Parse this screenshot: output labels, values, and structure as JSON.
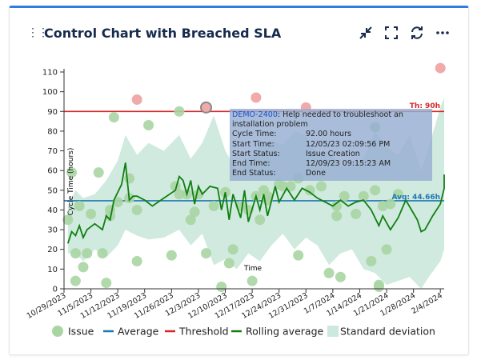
{
  "widget": {
    "title": "Control Chart with Breached SLA",
    "icons": [
      "collapse-icon",
      "fullscreen-icon",
      "refresh-icon",
      "more-icon"
    ]
  },
  "tooltip": {
    "issue": "DEMO-2400",
    "summary": ": Help needed to troubleshoot an installation problem",
    "rows": [
      {
        "label": "Cycle Time:",
        "value": "92.00 hours"
      },
      {
        "label": "Start Time:",
        "value": "12/05/23 02:09:56 PM"
      },
      {
        "label": "Start Status:",
        "value": "Issue Creation"
      },
      {
        "label": "End Time:",
        "value": "12/09/23 09:15:23 AM"
      },
      {
        "label": "End Status:",
        "value": "Done"
      }
    ]
  },
  "colors": {
    "issue_point": "#a9d5a3",
    "breached_point": "#f0aaaa",
    "average": "#1f77b4",
    "threshold": "#d62728",
    "rolling": "#108010",
    "band": "#cde9dd"
  },
  "chart_data": {
    "type": "scatter",
    "ylabel": "Cycle Time (hours)",
    "xlabel": "Time",
    "ylim": [
      0,
      110
    ],
    "xlim": [
      "2023-10-29",
      "2024-02-05"
    ],
    "x_ticks": [
      "10/29/2023",
      "11/5/2023",
      "11/12/2023",
      "11/19/2023",
      "11/26/2023",
      "12/3/2023",
      "12/10/2023",
      "12/17/2023",
      "12/24/2023",
      "12/31/2023",
      "1/7/2024",
      "1/14/2024",
      "1/21/2024",
      "1/28/2024",
      "2/4/2024"
    ],
    "y_ticks": [
      0,
      10,
      20,
      30,
      40,
      50,
      60,
      70,
      80,
      90,
      100,
      110
    ],
    "threshold": {
      "value": 90,
      "label": "Th: 90h"
    },
    "average": {
      "value": 44.66,
      "label": "Avg: 44.66h"
    },
    "legend": [
      "Issue",
      "Average",
      "Threshold",
      "Rolling average",
      "Standard deviation"
    ],
    "legend_position": "bottom",
    "issues": [
      {
        "date": "2023-10-30",
        "value": 35
      },
      {
        "date": "2023-10-31",
        "value": 59
      },
      {
        "date": "2023-11-01",
        "value": 4
      },
      {
        "date": "2023-11-01",
        "value": 18
      },
      {
        "date": "2023-11-02",
        "value": 42
      },
      {
        "date": "2023-11-03",
        "value": 11
      },
      {
        "date": "2023-11-04",
        "value": 18
      },
      {
        "date": "2023-11-05",
        "value": 38
      },
      {
        "date": "2023-11-07",
        "value": 59
      },
      {
        "date": "2023-11-08",
        "value": 18
      },
      {
        "date": "2023-11-09",
        "value": 3
      },
      {
        "date": "2023-11-10",
        "value": 37
      },
      {
        "date": "2023-11-10",
        "value": 40
      },
      {
        "date": "2023-11-11",
        "value": 87
      },
      {
        "date": "2023-11-12",
        "value": 44
      },
      {
        "date": "2023-11-15",
        "value": 56
      },
      {
        "date": "2023-11-15",
        "value": 46
      },
      {
        "date": "2023-11-17",
        "value": 14
      },
      {
        "date": "2023-11-17",
        "value": 40
      },
      {
        "date": "2023-11-20",
        "value": 83
      },
      {
        "date": "2023-11-26",
        "value": 17
      },
      {
        "date": "2023-11-27",
        "value": 52
      },
      {
        "date": "2023-11-28",
        "value": 90
      },
      {
        "date": "2023-11-28",
        "value": 48
      },
      {
        "date": "2023-11-30",
        "value": 48
      },
      {
        "date": "2023-12-01",
        "value": 35
      },
      {
        "date": "2023-12-02",
        "value": 39
      },
      {
        "date": "2023-12-03",
        "value": 48
      },
      {
        "date": "2023-12-05",
        "value": 92
      },
      {
        "date": "2023-12-05",
        "value": 18
      },
      {
        "date": "2023-12-07",
        "value": 42
      },
      {
        "date": "2023-12-09",
        "value": 1
      },
      {
        "date": "2023-12-10",
        "value": 49
      },
      {
        "date": "2023-12-11",
        "value": 13
      },
      {
        "date": "2023-12-12",
        "value": 20
      },
      {
        "date": "2023-12-14",
        "value": 42
      },
      {
        "date": "2023-12-16",
        "value": 40
      },
      {
        "date": "2023-12-17",
        "value": 4
      },
      {
        "date": "2023-12-18",
        "value": 47
      },
      {
        "date": "2023-12-19",
        "value": 35
      },
      {
        "date": "2023-12-20",
        "value": 50
      },
      {
        "date": "2023-12-21",
        "value": 45
      },
      {
        "date": "2023-12-21",
        "value": 47
      },
      {
        "date": "2023-12-24",
        "value": 53
      },
      {
        "date": "2023-12-25",
        "value": 52
      },
      {
        "date": "2023-12-27",
        "value": 52
      },
      {
        "date": "2023-12-29",
        "value": 17
      },
      {
        "date": "2023-12-29",
        "value": 56
      },
      {
        "date": "2024-01-01",
        "value": 50
      },
      {
        "date": "2024-01-04",
        "value": 52
      },
      {
        "date": "2024-01-06",
        "value": 8
      },
      {
        "date": "2024-01-08",
        "value": 42
      },
      {
        "date": "2024-01-08",
        "value": 37
      },
      {
        "date": "2024-01-09",
        "value": 6
      },
      {
        "date": "2024-01-10",
        "value": 47
      },
      {
        "date": "2024-01-13",
        "value": 38
      },
      {
        "date": "2024-01-15",
        "value": 47
      },
      {
        "date": "2024-01-17",
        "value": 14
      },
      {
        "date": "2024-01-18",
        "value": 50
      },
      {
        "date": "2024-01-18",
        "value": 82
      },
      {
        "date": "2024-01-19",
        "value": 2
      },
      {
        "date": "2024-01-19",
        "value": 1
      },
      {
        "date": "2024-01-20",
        "value": 42
      },
      {
        "date": "2024-01-21",
        "value": 20
      },
      {
        "date": "2024-01-22",
        "value": 43
      },
      {
        "date": "2024-01-24",
        "value": 48
      }
    ],
    "breached": [
      {
        "date": "2023-11-17",
        "value": 96
      },
      {
        "date": "2023-12-05",
        "value": 92
      },
      {
        "date": "2023-12-18",
        "value": 97
      },
      {
        "date": "2023-12-31",
        "value": 92
      },
      {
        "date": "2024-02-04",
        "value": 112
      }
    ],
    "rolling_average": [
      {
        "date": "2023-10-30",
        "value": 23
      },
      {
        "date": "2023-10-31",
        "value": 29
      },
      {
        "date": "2023-11-01",
        "value": 27
      },
      {
        "date": "2023-11-02",
        "value": 32
      },
      {
        "date": "2023-11-03",
        "value": 26
      },
      {
        "date": "2023-11-04",
        "value": 30
      },
      {
        "date": "2023-11-06",
        "value": 33
      },
      {
        "date": "2023-11-08",
        "value": 30
      },
      {
        "date": "2023-11-09",
        "value": 37
      },
      {
        "date": "2023-11-10",
        "value": 35
      },
      {
        "date": "2023-11-11",
        "value": 45
      },
      {
        "date": "2023-11-13",
        "value": 53
      },
      {
        "date": "2023-11-14",
        "value": 64
      },
      {
        "date": "2023-11-15",
        "value": 45
      },
      {
        "date": "2023-11-16",
        "value": 47
      },
      {
        "date": "2023-11-17",
        "value": 47
      },
      {
        "date": "2023-11-19",
        "value": 45
      },
      {
        "date": "2023-11-21",
        "value": 42
      },
      {
        "date": "2023-11-24",
        "value": 46
      },
      {
        "date": "2023-11-27",
        "value": 50
      },
      {
        "date": "2023-11-28",
        "value": 57
      },
      {
        "date": "2023-11-29",
        "value": 55
      },
      {
        "date": "2023-11-30",
        "value": 48
      },
      {
        "date": "2023-12-01",
        "value": 55
      },
      {
        "date": "2023-12-02",
        "value": 43
      },
      {
        "date": "2023-12-03",
        "value": 52
      },
      {
        "date": "2023-12-04",
        "value": 48
      },
      {
        "date": "2023-12-06",
        "value": 52
      },
      {
        "date": "2023-12-08",
        "value": 51
      },
      {
        "date": "2023-12-09",
        "value": 40
      },
      {
        "date": "2023-12-10",
        "value": 49
      },
      {
        "date": "2023-12-11",
        "value": 35
      },
      {
        "date": "2023-12-12",
        "value": 48
      },
      {
        "date": "2023-12-14",
        "value": 36
      },
      {
        "date": "2023-12-15",
        "value": 50
      },
      {
        "date": "2023-12-16",
        "value": 34
      },
      {
        "date": "2023-12-18",
        "value": 47
      },
      {
        "date": "2023-12-19",
        "value": 40
      },
      {
        "date": "2023-12-20",
        "value": 48
      },
      {
        "date": "2023-12-21",
        "value": 37
      },
      {
        "date": "2023-12-23",
        "value": 52
      },
      {
        "date": "2023-12-24",
        "value": 44
      },
      {
        "date": "2023-12-26",
        "value": 51
      },
      {
        "date": "2023-12-28",
        "value": 45
      },
      {
        "date": "2023-12-30",
        "value": 51
      },
      {
        "date": "2024-01-01",
        "value": 49
      },
      {
        "date": "2024-01-03",
        "value": 46
      },
      {
        "date": "2024-01-05",
        "value": 44
      },
      {
        "date": "2024-01-07",
        "value": 42
      },
      {
        "date": "2024-01-09",
        "value": 45
      },
      {
        "date": "2024-01-11",
        "value": 42
      },
      {
        "date": "2024-01-13",
        "value": 44
      },
      {
        "date": "2024-01-15",
        "value": 45
      },
      {
        "date": "2024-01-17",
        "value": 40
      },
      {
        "date": "2024-01-19",
        "value": 32
      },
      {
        "date": "2024-01-20",
        "value": 37
      },
      {
        "date": "2024-01-22",
        "value": 30
      },
      {
        "date": "2024-01-24",
        "value": 36
      },
      {
        "date": "2024-01-26",
        "value": 45
      },
      {
        "date": "2024-01-29",
        "value": 35
      },
      {
        "date": "2024-01-30",
        "value": 29
      },
      {
        "date": "2024-01-31",
        "value": 30
      },
      {
        "date": "2024-02-02",
        "value": 37
      },
      {
        "date": "2024-02-04",
        "value": 43
      },
      {
        "date": "2024-02-06",
        "value": 51
      },
      {
        "date": "2024-02-07",
        "value": 58
      },
      {
        "date": "2024-02-08",
        "value": 58
      }
    ],
    "std_band": [
      {
        "date": "2023-10-30",
        "upper": 42,
        "lower": 18
      },
      {
        "date": "2023-11-01",
        "upper": 50,
        "lower": 18
      },
      {
        "date": "2023-11-03",
        "upper": 46,
        "lower": 14
      },
      {
        "date": "2023-11-06",
        "upper": 48,
        "lower": 20
      },
      {
        "date": "2023-11-09",
        "upper": 55,
        "lower": 16
      },
      {
        "date": "2023-11-12",
        "upper": 65,
        "lower": 22
      },
      {
        "date": "2023-11-14",
        "upper": 78,
        "lower": 30
      },
      {
        "date": "2023-11-17",
        "upper": 68,
        "lower": 27
      },
      {
        "date": "2023-11-20",
        "upper": 74,
        "lower": 25
      },
      {
        "date": "2023-11-24",
        "upper": 70,
        "lower": 26
      },
      {
        "date": "2023-11-28",
        "upper": 78,
        "lower": 30
      },
      {
        "date": "2023-12-01",
        "upper": 66,
        "lower": 22
      },
      {
        "date": "2023-12-04",
        "upper": 74,
        "lower": 28
      },
      {
        "date": "2023-12-07",
        "upper": 88,
        "lower": 12
      },
      {
        "date": "2023-12-10",
        "upper": 70,
        "lower": 15
      },
      {
        "date": "2023-12-13",
        "upper": 60,
        "lower": 10
      },
      {
        "date": "2023-12-16",
        "upper": 66,
        "lower": 18
      },
      {
        "date": "2023-12-19",
        "upper": 72,
        "lower": 14
      },
      {
        "date": "2023-12-22",
        "upper": 75,
        "lower": 22
      },
      {
        "date": "2023-12-25",
        "upper": 73,
        "lower": 28
      },
      {
        "date": "2023-12-28",
        "upper": 80,
        "lower": 20
      },
      {
        "date": "2023-12-31",
        "upper": 78,
        "lower": 26
      },
      {
        "date": "2024-01-03",
        "upper": 68,
        "lower": 22
      },
      {
        "date": "2024-01-06",
        "upper": 70,
        "lower": 12
      },
      {
        "date": "2024-01-09",
        "upper": 62,
        "lower": 18
      },
      {
        "date": "2024-01-12",
        "upper": 63,
        "lower": 20
      },
      {
        "date": "2024-01-15",
        "upper": 66,
        "lower": 10
      },
      {
        "date": "2024-01-18",
        "upper": 80,
        "lower": 8
      },
      {
        "date": "2024-01-21",
        "upper": 72,
        "lower": 2
      },
      {
        "date": "2024-01-24",
        "upper": 68,
        "lower": 4
      },
      {
        "date": "2024-01-27",
        "upper": 78,
        "lower": 6
      },
      {
        "date": "2024-01-30",
        "upper": 60,
        "lower": 0
      },
      {
        "date": "2024-02-01",
        "upper": 72,
        "lower": 6
      },
      {
        "date": "2024-02-04",
        "upper": 92,
        "lower": 14
      },
      {
        "date": "2024-02-08",
        "upper": 97,
        "lower": 20
      }
    ]
  }
}
